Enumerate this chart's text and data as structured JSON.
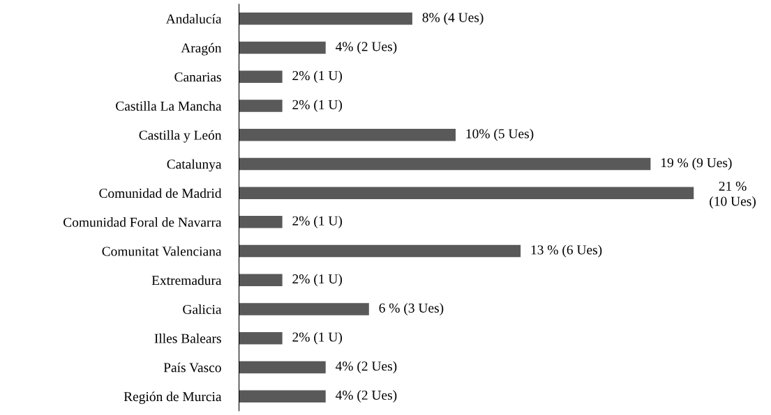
{
  "chart_data": {
    "type": "bar",
    "orientation": "horizontal",
    "categories": [
      "Andalucía",
      "Aragón",
      "Canarias",
      "Castilla La Mancha",
      "Castilla y León",
      "Catalunya",
      "Comunidad de Madrid",
      "Comunidad Foral de Navarra",
      "Comunitat Valenciana",
      "Extremadura",
      "Galicia",
      "Illes Balears",
      "País Vasco",
      "Región de Murcia"
    ],
    "values": [
      8,
      4,
      2,
      2,
      10,
      19,
      21,
      2,
      13,
      2,
      6,
      2,
      4,
      4
    ],
    "value_labels": [
      "8% (4 Ues)",
      "4% (2 Ues)",
      "2% (1 U)",
      "2% (1 U)",
      "10% (5 Ues)",
      "19 % (9 Ues)",
      "21 %\n(10 Ues)",
      "2% (1 U)",
      "13 % (6 Ues)",
      "2% (1 U)",
      "6 % (3 Ues)",
      "2% (1 U)",
      "4% (2 Ues)",
      "4% (2 Ues)"
    ],
    "color": "#595959",
    "grid": false,
    "legend": false
  }
}
